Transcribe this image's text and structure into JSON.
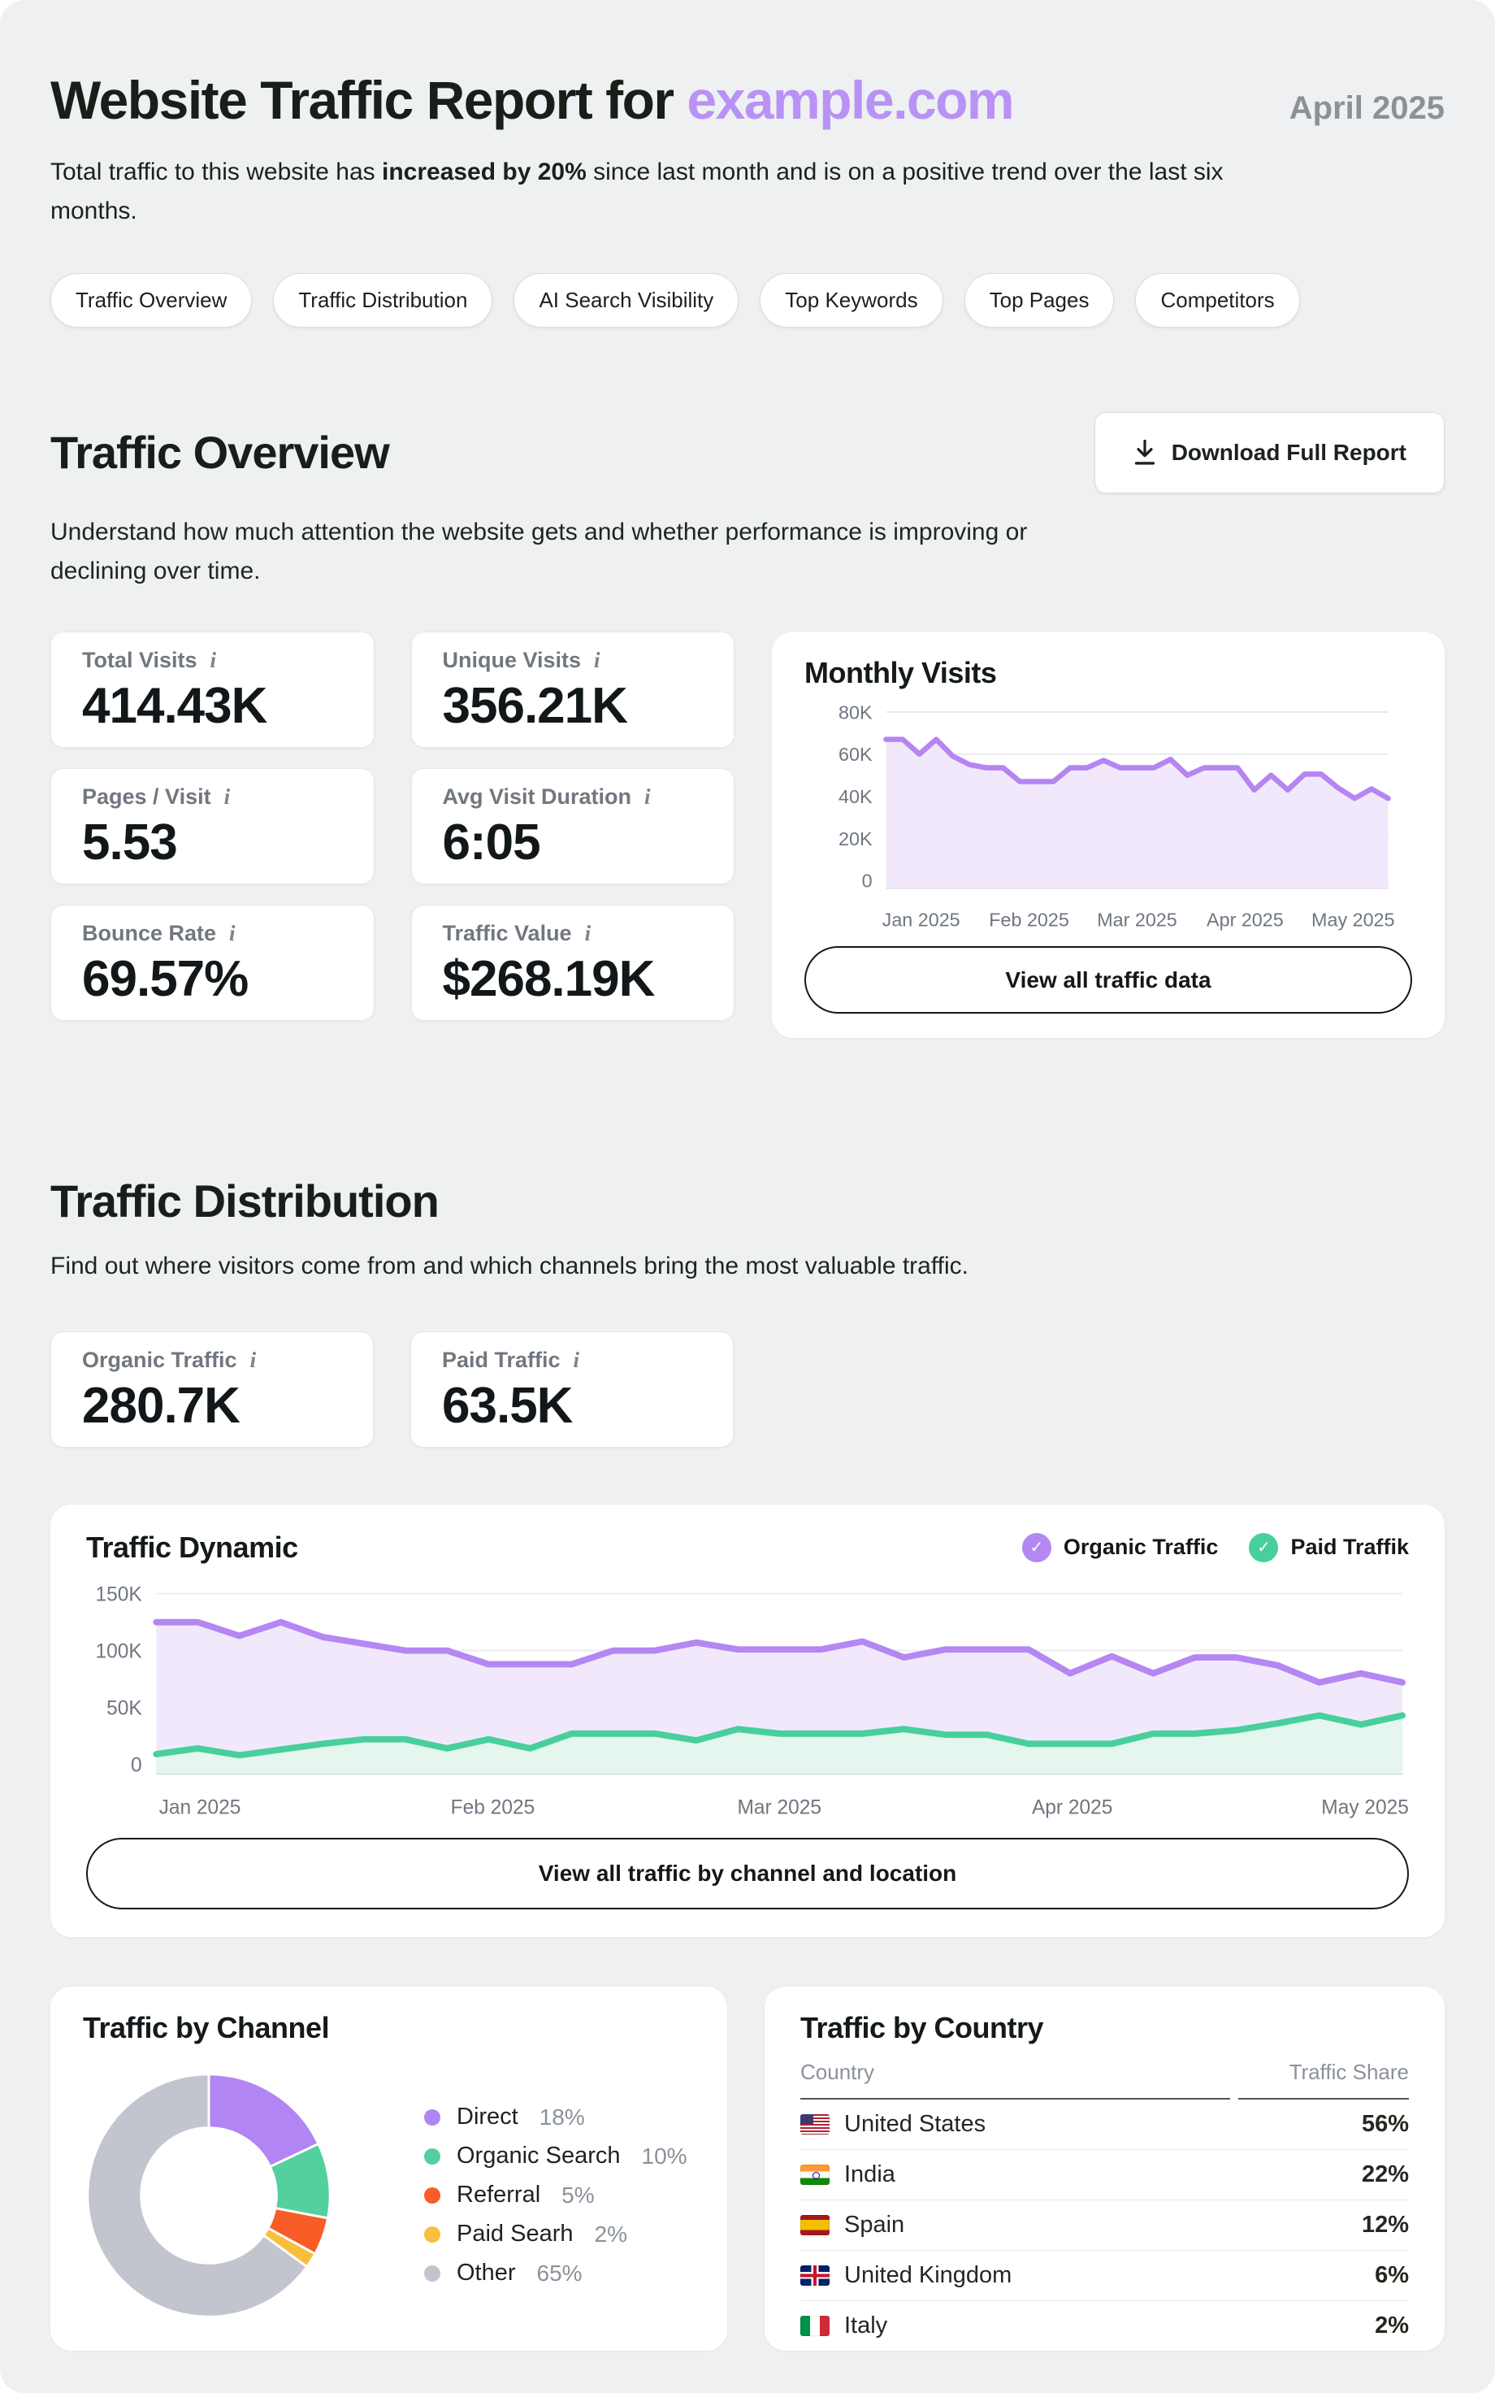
{
  "header": {
    "title_prefix": "Website Traffic Report for ",
    "title_domain": "example.com",
    "period": "April 2025",
    "intro_pre": "Total traffic to this website has ",
    "intro_bold": "increased by 20%",
    "intro_post": " since last month and is on a positive trend over the last six months."
  },
  "nav_pills": [
    "Traffic Overview",
    "Traffic Distribution",
    "AI Search Visibility",
    "Top Keywords",
    "Top Pages",
    "Competitors"
  ],
  "traffic_overview": {
    "heading": "Traffic Overview",
    "download_button": "Download Full Report",
    "description": "Understand how much attention the website gets and whether performance is improving or declining over time.",
    "stats": [
      {
        "label": "Total Visits",
        "info": "i",
        "value": "414.43K"
      },
      {
        "label": "Unique Visits",
        "info": "i",
        "value": "356.21K"
      },
      {
        "label": "Pages / Visit",
        "info": "i",
        "value": "5.53"
      },
      {
        "label": "Avg Visit Duration",
        "info": "i",
        "value": "6:05"
      },
      {
        "label": "Bounce Rate",
        "info": "i",
        "value": "69.57%"
      },
      {
        "label": "Traffic Value",
        "info": "i",
        "value": "$268.19K"
      }
    ],
    "monthly_chart_title": "Monthly Visits",
    "view_all_button": "View all traffic data"
  },
  "traffic_distribution": {
    "heading": "Traffic Distribution",
    "description": "Find out where visitors come from and which channels bring the most valuable traffic.",
    "stats": [
      {
        "label": "Organic Traffic",
        "info": "i",
        "value": "280.7K"
      },
      {
        "label": "Paid Traffic",
        "info": "i",
        "value": "63.5K"
      }
    ],
    "dynamic": {
      "title": "Traffic Dynamic",
      "legend": [
        {
          "label": "Organic Traffic",
          "color": "#b487f3"
        },
        {
          "label": "Paid Traffik",
          "color": "#47cf9c"
        }
      ],
      "view_all_button": "View all traffic by channel and location"
    }
  },
  "traffic_by_channel": {
    "title": "Traffic by Channel",
    "legend": [
      {
        "label": "Direct",
        "value": "18%",
        "color": "#b285f4"
      },
      {
        "label": "Organic Search",
        "value": "10%",
        "color": "#54cf9e"
      },
      {
        "label": "Referral",
        "value": "5%",
        "color": "#f85c27"
      },
      {
        "label": "Paid Searh",
        "value": "2%",
        "color": "#f9bf3c"
      },
      {
        "label": "Other",
        "value": "65%",
        "color": "#c3c5ce"
      }
    ]
  },
  "traffic_by_country": {
    "title": "Traffic by Country",
    "columns": [
      "Country",
      "Traffic Share"
    ],
    "rows": [
      {
        "country": "United States",
        "flag": "us",
        "share": "56%"
      },
      {
        "country": "India",
        "flag": "in",
        "share": "22%"
      },
      {
        "country": "Spain",
        "flag": "es",
        "share": "12%"
      },
      {
        "country": "United Kingdom",
        "flag": "gb",
        "share": "6%"
      },
      {
        "country": "Italy",
        "flag": "it",
        "share": "2%"
      }
    ]
  },
  "chart_data": [
    {
      "type": "area",
      "title": "Monthly Visits",
      "x_ticks": [
        "Jan 2025",
        "Feb 2025",
        "Mar 2025",
        "Apr 2025",
        "May 2025"
      ],
      "y_ticks": [
        "0",
        "20K",
        "40K",
        "60K",
        "80K"
      ],
      "y_tick_values": [
        0,
        20,
        40,
        60,
        80
      ],
      "ylim_k": [
        0,
        80
      ],
      "grid": true,
      "series": [
        {
          "name": "Monthly Visits",
          "color": "#b685f1",
          "fill": "#f1e9fb",
          "values_k": [
            67,
            67,
            60,
            67,
            59,
            55,
            53.5,
            53.5,
            47,
            47,
            47,
            53.5,
            53.5,
            57,
            53.5,
            53.5,
            53.5,
            57.5,
            50,
            53.5,
            53.5,
            53.5,
            43,
            50,
            43,
            50.5,
            50.5,
            44,
            39,
            43.5,
            39
          ]
        }
      ]
    },
    {
      "type": "area",
      "title": "Traffic Dynamic",
      "legend_position": "top-right",
      "x_ticks": [
        "Jan 2025",
        "Feb 2025",
        "Mar 2025",
        "Apr 2025",
        "May 2025"
      ],
      "y_ticks": [
        "0",
        "50K",
        "100K",
        "150K"
      ],
      "y_tick_values": [
        0,
        50,
        100,
        150
      ],
      "ylim_k": [
        0,
        150
      ],
      "grid": true,
      "series": [
        {
          "name": "Organic Traffic",
          "color": "#b487f3",
          "fill": "#f1e9fb",
          "values_k": [
            125,
            125,
            113,
            125,
            112,
            106,
            100,
            100,
            88,
            88,
            88,
            100,
            100,
            107,
            101,
            101,
            101,
            108,
            94,
            101,
            101,
            101,
            80,
            95,
            80,
            94,
            94,
            87,
            72,
            80,
            72
          ]
        },
        {
          "name": "Paid Traffik",
          "color": "#47cf9c",
          "fill": "#e4f6ed",
          "values_k": [
            9,
            14,
            8,
            13,
            18,
            22,
            22,
            14,
            22,
            14,
            27,
            27,
            27,
            21,
            31,
            27,
            27,
            27,
            31,
            26,
            26,
            18,
            18,
            18,
            27,
            27,
            30,
            36,
            43,
            35,
            43
          ]
        }
      ]
    },
    {
      "type": "pie",
      "donut": true,
      "title": "Traffic by Channel",
      "labels": [
        "Direct",
        "Organic Search",
        "Referral",
        "Paid Searh",
        "Other"
      ],
      "values_pct": [
        18,
        10,
        5,
        2,
        65
      ],
      "colors": [
        "#b285f4",
        "#54cf9e",
        "#f85c27",
        "#f9bf3c",
        "#c3c5ce"
      ]
    },
    {
      "type": "table",
      "title": "Traffic by Country",
      "columns": [
        "Country",
        "Traffic Share"
      ],
      "rows": [
        [
          "United States",
          "56%"
        ],
        [
          "India",
          "22%"
        ],
        [
          "Spain",
          "12%"
        ],
        [
          "United Kingdom",
          "6%"
        ],
        [
          "Italy",
          "2%"
        ]
      ]
    }
  ]
}
